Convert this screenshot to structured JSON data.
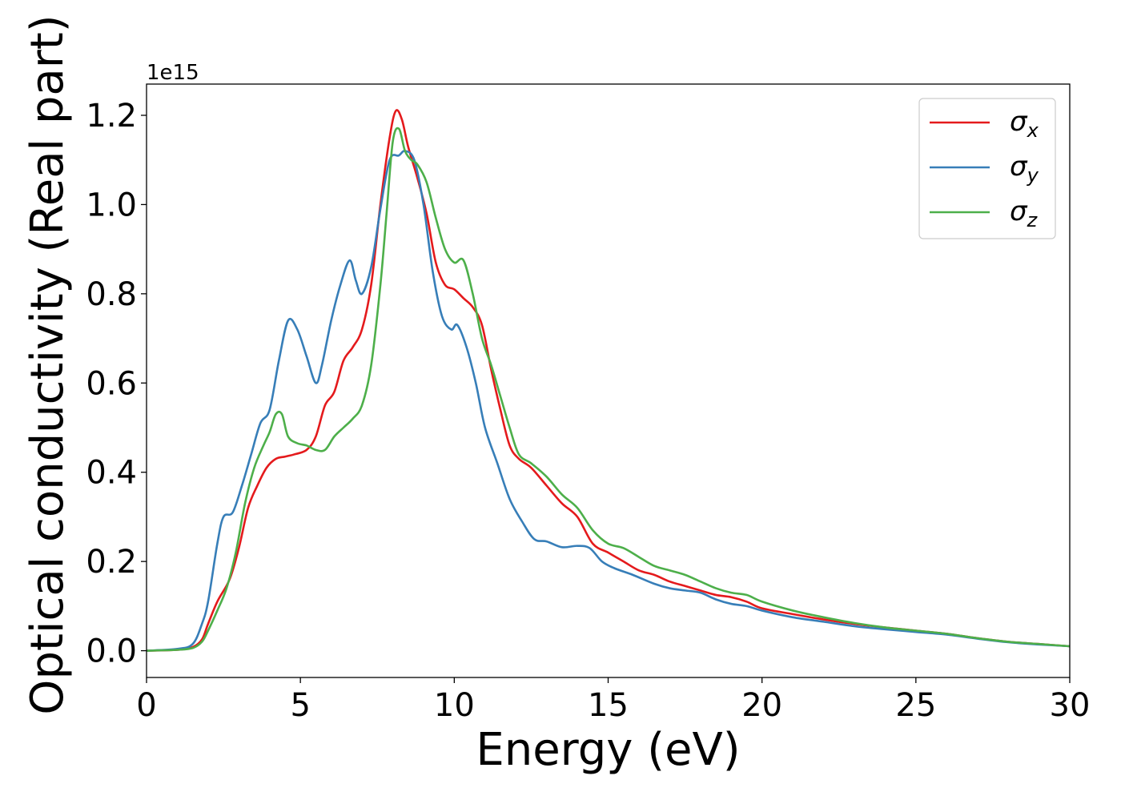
{
  "chart_data": {
    "type": "line",
    "xlabel": "Energy (eV)",
    "ylabel": "Optical conductivity (Real part)",
    "y_offset_text": "1e15",
    "xlim": [
      0,
      30
    ],
    "ylim": [
      -0.06,
      1.27
    ],
    "x_ticks": [
      0,
      5,
      10,
      15,
      20,
      25,
      30
    ],
    "x_tick_labels": [
      "0",
      "5",
      "10",
      "15",
      "20",
      "25",
      "30"
    ],
    "y_ticks": [
      0.0,
      0.2,
      0.4,
      0.6,
      0.8,
      1.0,
      1.2
    ],
    "y_tick_labels": [
      "0.0",
      "0.2",
      "0.4",
      "0.6",
      "0.8",
      "1.0",
      "1.2"
    ],
    "grid": false,
    "legend_position": "top-right",
    "series": [
      {
        "name": "σx",
        "symbol": "σ",
        "subscript": "x",
        "color": "#e41a1c",
        "x": [
          0,
          1,
          1.5,
          1.8,
          2.0,
          2.3,
          2.7,
          3.0,
          3.3,
          3.6,
          3.9,
          4.2,
          4.5,
          4.8,
          5.2,
          5.5,
          5.8,
          6.1,
          6.4,
          6.7,
          7.0,
          7.3,
          7.6,
          7.9,
          8.1,
          8.3,
          8.5,
          8.8,
          9.1,
          9.4,
          9.7,
          10.0,
          10.3,
          10.6,
          10.9,
          11.2,
          11.5,
          11.8,
          12.1,
          12.5,
          13.0,
          13.5,
          14.0,
          14.5,
          15.0,
          15.5,
          16.0,
          16.5,
          17.0,
          17.5,
          18.0,
          18.5,
          19.0,
          19.5,
          20.0,
          21.0,
          22.0,
          23.0,
          24.0,
          25.0,
          26.0,
          27.0,
          28.0,
          29.0,
          30.0
        ],
        "y": [
          0.0,
          0.002,
          0.008,
          0.025,
          0.06,
          0.11,
          0.16,
          0.23,
          0.32,
          0.37,
          0.41,
          0.43,
          0.435,
          0.44,
          0.45,
          0.48,
          0.55,
          0.58,
          0.65,
          0.68,
          0.72,
          0.82,
          1.0,
          1.15,
          1.21,
          1.19,
          1.13,
          1.06,
          0.98,
          0.87,
          0.82,
          0.81,
          0.79,
          0.77,
          0.73,
          0.63,
          0.54,
          0.46,
          0.43,
          0.41,
          0.37,
          0.33,
          0.3,
          0.24,
          0.22,
          0.2,
          0.18,
          0.17,
          0.155,
          0.145,
          0.135,
          0.125,
          0.12,
          0.11,
          0.095,
          0.082,
          0.07,
          0.06,
          0.052,
          0.045,
          0.038,
          0.028,
          0.02,
          0.015,
          0.01
        ]
      },
      {
        "name": "σy",
        "symbol": "σ",
        "subscript": "y",
        "color": "#377eb8",
        "x": [
          0,
          1,
          1.5,
          1.8,
          2.0,
          2.3,
          2.5,
          2.8,
          3.1,
          3.4,
          3.7,
          4.0,
          4.3,
          4.6,
          4.9,
          5.2,
          5.5,
          5.7,
          6.0,
          6.3,
          6.6,
          6.8,
          7.0,
          7.3,
          7.6,
          7.9,
          8.2,
          8.4,
          8.7,
          9.0,
          9.3,
          9.6,
          9.9,
          10.1,
          10.4,
          10.7,
          11.0,
          11.4,
          11.8,
          12.2,
          12.6,
          13.0,
          13.5,
          14.0,
          14.4,
          14.8,
          15.2,
          15.8,
          16.5,
          17.0,
          17.5,
          18.0,
          18.5,
          19.0,
          19.5,
          20.0,
          21.0,
          22.0,
          23.0,
          24.0,
          25.0,
          26.0,
          27.0,
          28.0,
          29.0,
          30.0
        ],
        "y": [
          0.0,
          0.004,
          0.015,
          0.06,
          0.11,
          0.24,
          0.3,
          0.31,
          0.37,
          0.44,
          0.51,
          0.54,
          0.65,
          0.74,
          0.72,
          0.66,
          0.6,
          0.64,
          0.74,
          0.82,
          0.875,
          0.83,
          0.8,
          0.86,
          0.99,
          1.1,
          1.11,
          1.12,
          1.1,
          1.0,
          0.85,
          0.75,
          0.72,
          0.73,
          0.68,
          0.6,
          0.5,
          0.42,
          0.34,
          0.29,
          0.25,
          0.245,
          0.232,
          0.235,
          0.23,
          0.2,
          0.185,
          0.17,
          0.15,
          0.14,
          0.135,
          0.13,
          0.115,
          0.105,
          0.1,
          0.09,
          0.075,
          0.065,
          0.055,
          0.048,
          0.042,
          0.036,
          0.027,
          0.019,
          0.014,
          0.01
        ]
      },
      {
        "name": "σz",
        "symbol": "σ",
        "subscript": "z",
        "color": "#4daf4a",
        "x": [
          0,
          1,
          1.5,
          1.8,
          2.0,
          2.3,
          2.6,
          2.9,
          3.2,
          3.5,
          3.8,
          4.0,
          4.2,
          4.4,
          4.6,
          4.9,
          5.2,
          5.5,
          5.8,
          6.1,
          6.4,
          6.7,
          7.0,
          7.3,
          7.6,
          7.8,
          8.0,
          8.2,
          8.4,
          8.6,
          8.8,
          9.1,
          9.4,
          9.7,
          10.0,
          10.3,
          10.6,
          10.9,
          11.2,
          11.5,
          11.8,
          12.1,
          12.5,
          13.0,
          13.5,
          14.0,
          14.5,
          15.0,
          15.5,
          16.0,
          16.5,
          17.0,
          17.5,
          18.0,
          18.5,
          19.0,
          19.5,
          20.0,
          21.0,
          22.0,
          23.0,
          24.0,
          25.0,
          26.0,
          27.0,
          28.0,
          29.0,
          30.0
        ],
        "y": [
          0.0,
          0.002,
          0.006,
          0.02,
          0.045,
          0.09,
          0.14,
          0.22,
          0.33,
          0.41,
          0.46,
          0.49,
          0.53,
          0.53,
          0.48,
          0.465,
          0.46,
          0.45,
          0.45,
          0.48,
          0.5,
          0.52,
          0.55,
          0.64,
          0.82,
          0.98,
          1.14,
          1.17,
          1.12,
          1.1,
          1.09,
          1.05,
          0.97,
          0.9,
          0.87,
          0.875,
          0.8,
          0.7,
          0.64,
          0.57,
          0.5,
          0.44,
          0.42,
          0.39,
          0.35,
          0.32,
          0.27,
          0.24,
          0.23,
          0.21,
          0.19,
          0.18,
          0.17,
          0.155,
          0.14,
          0.13,
          0.125,
          0.11,
          0.09,
          0.075,
          0.062,
          0.052,
          0.045,
          0.038,
          0.028,
          0.02,
          0.015,
          0.01
        ]
      }
    ]
  }
}
